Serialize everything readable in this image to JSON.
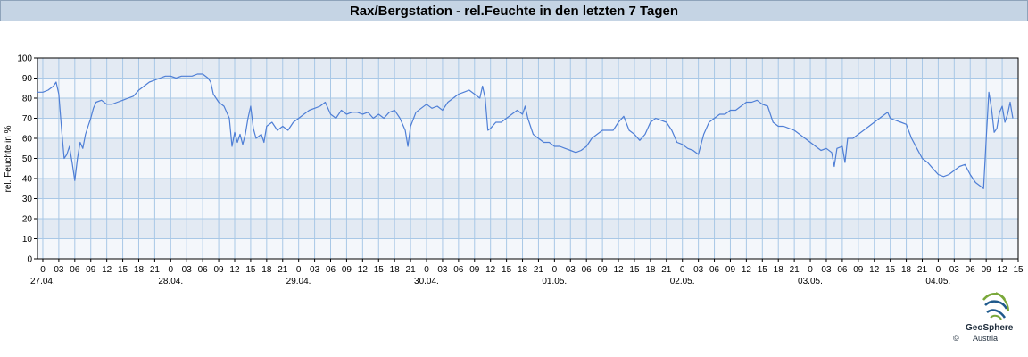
{
  "header": {
    "title": "Rax/Bergstation - rel.Feuchte in den letzten 7 Tagen"
  },
  "logo": {
    "name": "GeoSphere",
    "sub": "Austria",
    "copyright": "©"
  },
  "chart_data": {
    "type": "line",
    "title": "Rax/Bergstation - rel.Feuchte in den letzten 7 Tagen",
    "xlabel": "",
    "ylabel": "rel. Feuchte in %",
    "ylim": [
      0,
      100
    ],
    "yticks": [
      0,
      10,
      20,
      30,
      40,
      50,
      60,
      70,
      80,
      90,
      100
    ],
    "x_unit": "hours since 27.04. 00:00",
    "xlim": [
      -1,
      183
    ],
    "hour_ticks": [
      "0",
      "03",
      "06",
      "09",
      "12",
      "15",
      "18",
      "21",
      "0",
      "03",
      "06",
      "09",
      "12",
      "15",
      "18",
      "21",
      "0",
      "03",
      "06",
      "09",
      "12",
      "15",
      "18",
      "21",
      "0",
      "03",
      "06",
      "09",
      "12",
      "15",
      "18",
      "21",
      "0",
      "03",
      "06",
      "09",
      "12",
      "15",
      "18",
      "21",
      "0",
      "03",
      "06",
      "09",
      "12",
      "15",
      "18",
      "21",
      "0",
      "03",
      "06",
      "09",
      "12",
      "15",
      "18",
      "21",
      "0",
      "03",
      "06",
      "09",
      "12",
      "15"
    ],
    "day_labels": [
      "27.04.",
      "28.04.",
      "29.04.",
      "30.04.",
      "01.05.",
      "02.05.",
      "03.05.",
      "04.05."
    ],
    "grid": true,
    "legend": "none",
    "colors": {
      "line": "#4f7fd6",
      "band_dark": "#e3eaf3",
      "band_light": "#f4f7fb",
      "grid": "#a9c8e6"
    },
    "series": [
      {
        "values": [
          [
            -1,
            83
          ],
          [
            0,
            83
          ],
          [
            1,
            84
          ],
          [
            2,
            86
          ],
          [
            2.5,
            88
          ],
          [
            3,
            82
          ],
          [
            3.5,
            65
          ],
          [
            4,
            50
          ],
          [
            4.5,
            52
          ],
          [
            5,
            56
          ],
          [
            5.5,
            48
          ],
          [
            6,
            39
          ],
          [
            6.5,
            50
          ],
          [
            7,
            58
          ],
          [
            7.5,
            55
          ],
          [
            8,
            62
          ],
          [
            8.5,
            66
          ],
          [
            9,
            70
          ],
          [
            9.5,
            75
          ],
          [
            10,
            78
          ],
          [
            11,
            79
          ],
          [
            12,
            77
          ],
          [
            13,
            77
          ],
          [
            14,
            78
          ],
          [
            15,
            79
          ],
          [
            16,
            80
          ],
          [
            17,
            81
          ],
          [
            18,
            84
          ],
          [
            19,
            86
          ],
          [
            20,
            88
          ],
          [
            21,
            89
          ],
          [
            22,
            90
          ],
          [
            23,
            91
          ],
          [
            24,
            91
          ],
          [
            25,
            90
          ],
          [
            26,
            91
          ],
          [
            27,
            91
          ],
          [
            28,
            91
          ],
          [
            29,
            92
          ],
          [
            30,
            92
          ],
          [
            31,
            90
          ],
          [
            31.5,
            88
          ],
          [
            32,
            82
          ],
          [
            33,
            78
          ],
          [
            34,
            76
          ],
          [
            35,
            70
          ],
          [
            35.5,
            56
          ],
          [
            36,
            63
          ],
          [
            36.5,
            58
          ],
          [
            37,
            62
          ],
          [
            37.5,
            57
          ],
          [
            38,
            62
          ],
          [
            38.5,
            70
          ],
          [
            39,
            76
          ],
          [
            39.5,
            65
          ],
          [
            40,
            60
          ],
          [
            41,
            62
          ],
          [
            41.5,
            58
          ],
          [
            42,
            66
          ],
          [
            43,
            68
          ],
          [
            44,
            64
          ],
          [
            45,
            66
          ],
          [
            46,
            64
          ],
          [
            47,
            68
          ],
          [
            48,
            70
          ],
          [
            49,
            72
          ],
          [
            50,
            74
          ],
          [
            51,
            75
          ],
          [
            52,
            76
          ],
          [
            53,
            78
          ],
          [
            54,
            72
          ],
          [
            55,
            70
          ],
          [
            56,
            74
          ],
          [
            57,
            72
          ],
          [
            58,
            73
          ],
          [
            59,
            73
          ],
          [
            60,
            72
          ],
          [
            61,
            73
          ],
          [
            62,
            70
          ],
          [
            63,
            72
          ],
          [
            64,
            70
          ],
          [
            65,
            73
          ],
          [
            66,
            74
          ],
          [
            67,
            70
          ],
          [
            68,
            64
          ],
          [
            68.5,
            56
          ],
          [
            69,
            66
          ],
          [
            70,
            73
          ],
          [
            71,
            75
          ],
          [
            72,
            77
          ],
          [
            73,
            75
          ],
          [
            74,
            76
          ],
          [
            75,
            74
          ],
          [
            76,
            78
          ],
          [
            77,
            80
          ],
          [
            78,
            82
          ],
          [
            79,
            83
          ],
          [
            80,
            84
          ],
          [
            81,
            82
          ],
          [
            82,
            80
          ],
          [
            82.5,
            86
          ],
          [
            83,
            80
          ],
          [
            83.5,
            64
          ],
          [
            84,
            65
          ],
          [
            85,
            68
          ],
          [
            86,
            68
          ],
          [
            87,
            70
          ],
          [
            88,
            72
          ],
          [
            89,
            74
          ],
          [
            90,
            72
          ],
          [
            90.5,
            76
          ],
          [
            91,
            70
          ],
          [
            92,
            62
          ],
          [
            93,
            60
          ],
          [
            94,
            58
          ],
          [
            95,
            58
          ],
          [
            96,
            56
          ],
          [
            97,
            56
          ],
          [
            98,
            55
          ],
          [
            99,
            54
          ],
          [
            100,
            53
          ],
          [
            101,
            54
          ],
          [
            102,
            56
          ],
          [
            103,
            60
          ],
          [
            104,
            62
          ],
          [
            105,
            64
          ],
          [
            106,
            64
          ],
          [
            107,
            64
          ],
          [
            108,
            68
          ],
          [
            109,
            71
          ],
          [
            110,
            64
          ],
          [
            111,
            62
          ],
          [
            112,
            59
          ],
          [
            113,
            62
          ],
          [
            114,
            68
          ],
          [
            115,
            70
          ],
          [
            116,
            69
          ],
          [
            117,
            68
          ],
          [
            118,
            64
          ],
          [
            119,
            58
          ],
          [
            120,
            57
          ],
          [
            121,
            55
          ],
          [
            122,
            54
          ],
          [
            123,
            52
          ],
          [
            124,
            62
          ],
          [
            125,
            68
          ],
          [
            126,
            70
          ],
          [
            127,
            72
          ],
          [
            128,
            72
          ],
          [
            129,
            74
          ],
          [
            130,
            74
          ],
          [
            131,
            76
          ],
          [
            132,
            78
          ],
          [
            133,
            78
          ],
          [
            134,
            79
          ],
          [
            135,
            77
          ],
          [
            136,
            76
          ],
          [
            137,
            68
          ],
          [
            138,
            66
          ],
          [
            139,
            66
          ],
          [
            140,
            65
          ],
          [
            141,
            64
          ],
          [
            142,
            62
          ],
          [
            143,
            60
          ],
          [
            144,
            58
          ],
          [
            145,
            56
          ],
          [
            146,
            54
          ],
          [
            147,
            55
          ],
          [
            148,
            53
          ],
          [
            148.5,
            46
          ],
          [
            149,
            55
          ],
          [
            150,
            56
          ],
          [
            150.5,
            48
          ],
          [
            151,
            60
          ],
          [
            152,
            60
          ],
          [
            153,
            62
          ],
          [
            154,
            64
          ],
          [
            155,
            66
          ],
          [
            156,
            68
          ],
          [
            157,
            70
          ],
          [
            158,
            72
          ],
          [
            158.5,
            73
          ],
          [
            159,
            70
          ],
          [
            160,
            69
          ],
          [
            161,
            68
          ],
          [
            162,
            67
          ],
          [
            163,
            60
          ],
          [
            164,
            55
          ],
          [
            165,
            50
          ],
          [
            166,
            48
          ],
          [
            167,
            45
          ],
          [
            168,
            42
          ],
          [
            169,
            41
          ],
          [
            170,
            42
          ],
          [
            171,
            44
          ],
          [
            172,
            46
          ],
          [
            173,
            47
          ],
          [
            174,
            42
          ],
          [
            175,
            38
          ],
          [
            176,
            36
          ],
          [
            176.5,
            35
          ],
          [
            177,
            60
          ],
          [
            177.5,
            83
          ],
          [
            178,
            75
          ],
          [
            178.5,
            63
          ],
          [
            179,
            65
          ],
          [
            179.5,
            73
          ],
          [
            180,
            76
          ],
          [
            180.5,
            68
          ],
          [
            181,
            72
          ],
          [
            181.5,
            78
          ],
          [
            182,
            70
          ]
        ]
      }
    ]
  }
}
